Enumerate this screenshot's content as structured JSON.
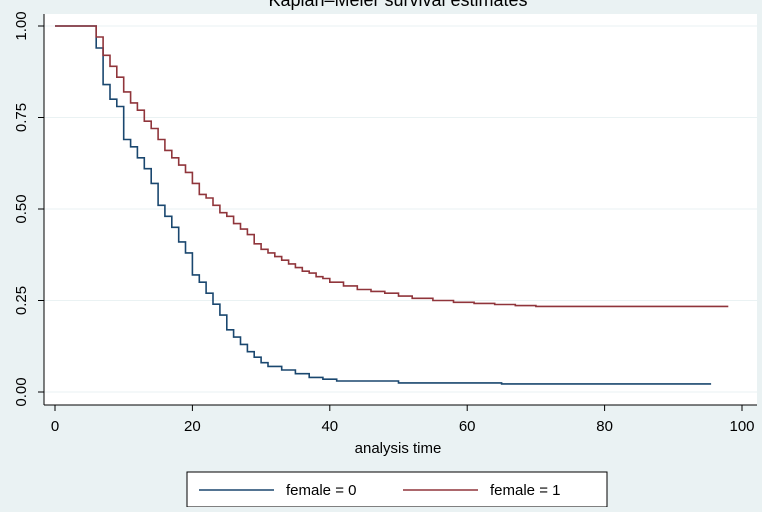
{
  "chart_data": {
    "type": "line",
    "subtype": "step",
    "title": "Kaplan–Meier survival estimates",
    "xlabel": "analysis time",
    "ylabel": "",
    "xlim": [
      0,
      100
    ],
    "ylim": [
      0,
      1
    ],
    "x_ticks": [
      "0",
      "20",
      "40",
      "60",
      "80",
      "100"
    ],
    "y_ticks": [
      "0.00",
      "0.25",
      "0.50",
      "0.75",
      "1.00"
    ],
    "grid": "horizontal",
    "legend_position": "bottom",
    "series": [
      {
        "name": "female = 0",
        "color": "#1a476f",
        "points": [
          [
            0,
            1.0
          ],
          [
            6,
            0.94
          ],
          [
            7,
            0.84
          ],
          [
            8,
            0.8
          ],
          [
            9,
            0.78
          ],
          [
            10,
            0.69
          ],
          [
            11,
            0.67
          ],
          [
            12,
            0.64
          ],
          [
            13,
            0.61
          ],
          [
            14,
            0.57
          ],
          [
            15,
            0.51
          ],
          [
            16,
            0.48
          ],
          [
            17,
            0.45
          ],
          [
            18,
            0.41
          ],
          [
            19,
            0.38
          ],
          [
            20,
            0.32
          ],
          [
            21,
            0.3
          ],
          [
            22,
            0.27
          ],
          [
            23,
            0.24
          ],
          [
            24,
            0.21
          ],
          [
            25,
            0.17
          ],
          [
            26,
            0.15
          ],
          [
            27,
            0.13
          ],
          [
            28,
            0.11
          ],
          [
            29,
            0.095
          ],
          [
            30,
            0.08
          ],
          [
            31,
            0.07
          ],
          [
            33,
            0.06
          ],
          [
            35,
            0.05
          ],
          [
            37,
            0.04
          ],
          [
            39,
            0.035
          ],
          [
            41,
            0.03
          ],
          [
            50,
            0.025
          ],
          [
            65,
            0.022
          ],
          [
            95.5,
            0.022
          ]
        ]
      },
      {
        "name": "female = 1",
        "color": "#90353b",
        "points": [
          [
            0,
            1.0
          ],
          [
            6,
            0.97
          ],
          [
            7,
            0.92
          ],
          [
            8,
            0.89
          ],
          [
            9,
            0.86
          ],
          [
            10,
            0.82
          ],
          [
            11,
            0.79
          ],
          [
            12,
            0.77
          ],
          [
            13,
            0.74
          ],
          [
            14,
            0.72
          ],
          [
            15,
            0.69
          ],
          [
            16,
            0.66
          ],
          [
            17,
            0.64
          ],
          [
            18,
            0.62
          ],
          [
            19,
            0.6
          ],
          [
            20,
            0.57
          ],
          [
            21,
            0.54
          ],
          [
            22,
            0.53
          ],
          [
            23,
            0.51
          ],
          [
            24,
            0.49
          ],
          [
            25,
            0.48
          ],
          [
            26,
            0.46
          ],
          [
            27,
            0.445
          ],
          [
            28,
            0.43
          ],
          [
            29,
            0.405
          ],
          [
            30,
            0.39
          ],
          [
            31,
            0.38
          ],
          [
            32,
            0.37
          ],
          [
            33,
            0.36
          ],
          [
            34,
            0.35
          ],
          [
            35,
            0.34
          ],
          [
            36,
            0.33
          ],
          [
            37,
            0.325
          ],
          [
            38,
            0.315
          ],
          [
            39,
            0.31
          ],
          [
            40,
            0.3
          ],
          [
            42,
            0.29
          ],
          [
            44,
            0.28
          ],
          [
            46,
            0.275
          ],
          [
            48,
            0.27
          ],
          [
            50,
            0.262
          ],
          [
            52,
            0.256
          ],
          [
            55,
            0.25
          ],
          [
            58,
            0.245
          ],
          [
            61,
            0.242
          ],
          [
            64,
            0.239
          ],
          [
            67,
            0.236
          ],
          [
            70,
            0.234
          ],
          [
            98,
            0.234
          ]
        ]
      }
    ]
  }
}
